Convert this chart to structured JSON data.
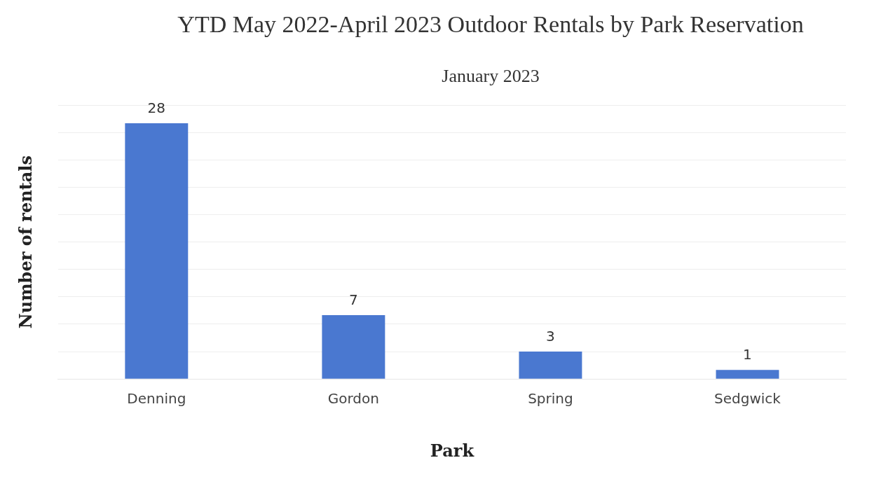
{
  "chart_data": {
    "type": "bar",
    "title": "YTD May 2022-April 2023 Outdoor Rentals by Park Reservation",
    "subtitle": "January 2023",
    "xlabel": "Park",
    "ylabel": "Number of rentals",
    "categories": [
      "Denning",
      "Gordon",
      "Spring",
      "Sedgwick"
    ],
    "values": [
      28,
      7,
      3,
      1
    ],
    "color": "#4a78d0",
    "data_labels": true,
    "grid": "y",
    "ylim": [
      0,
      30
    ],
    "yticks": [
      {
        "value": 0,
        "label": null
      },
      {
        "value": 3,
        "label": null
      },
      {
        "value": 6,
        "label": null
      },
      {
        "value": 9,
        "label": null
      },
      {
        "value": 12,
        "label": null
      },
      {
        "value": 15,
        "label": null
      },
      {
        "value": 18,
        "label": null
      },
      {
        "value": 21,
        "label": null
      },
      {
        "value": 24,
        "label": null
      },
      {
        "value": 27,
        "label": null
      },
      {
        "value": 30,
        "label": null
      }
    ],
    "tick_labels": "x"
  }
}
